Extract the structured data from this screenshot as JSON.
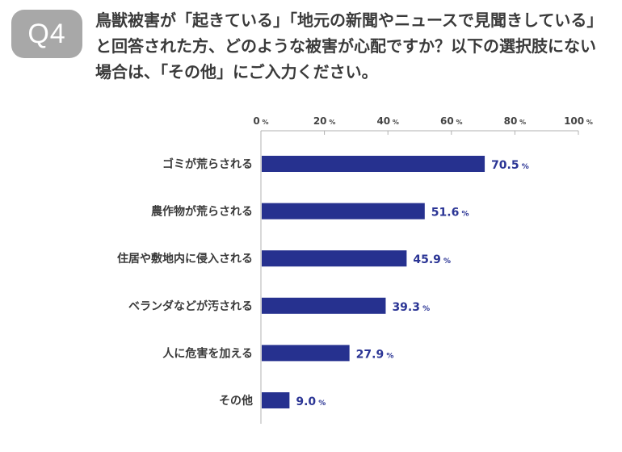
{
  "badge": "Q4",
  "question": "鳥獣被害が「起きている」「地元の新聞やニュースで見聞きしている」と回答された方、どのような被害が心配ですか？以下の選択肢にない場合は、「その他」にご入力ください。",
  "colors": {
    "bar": "#26318f",
    "value_text": "#2b3595",
    "badge": "#a8a8a8",
    "axis": "#b0b0b0"
  },
  "chart_data": {
    "type": "bar",
    "orientation": "horizontal",
    "categories": [
      "ゴミが荒らされる",
      "農作物が荒らされる",
      "住居や敷地内に侵入される",
      "ベランダなどが汚される",
      "人に危害を加える",
      "その他"
    ],
    "values": [
      70.5,
      51.6,
      45.9,
      39.3,
      27.9,
      9.0
    ],
    "value_labels": [
      "70.5",
      "51.6",
      "45.9",
      "39.3",
      "27.9",
      "9.0"
    ],
    "unit": "%",
    "xlim": [
      0,
      100
    ],
    "ticks": [
      0,
      20,
      40,
      60,
      80,
      100
    ],
    "grid": false,
    "axis_position": "top"
  }
}
